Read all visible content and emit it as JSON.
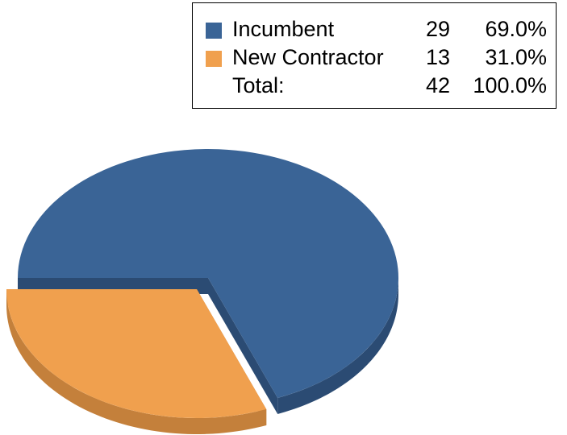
{
  "chart_data": {
    "type": "pie3d",
    "categories": [
      "Incumbent",
      "New Contractor"
    ],
    "values": [
      29,
      13
    ],
    "percentages": [
      69.0,
      31.0
    ],
    "percent_labels": [
      "69.0%",
      "31.0%"
    ],
    "colors": [
      "#3a6496",
      "#f0a04e"
    ],
    "side_colors": [
      "#2b4b73",
      "#c4803b"
    ],
    "total": {
      "label": "Total:",
      "value": 42,
      "percent": 100.0,
      "percent_label": "100.0%"
    }
  }
}
